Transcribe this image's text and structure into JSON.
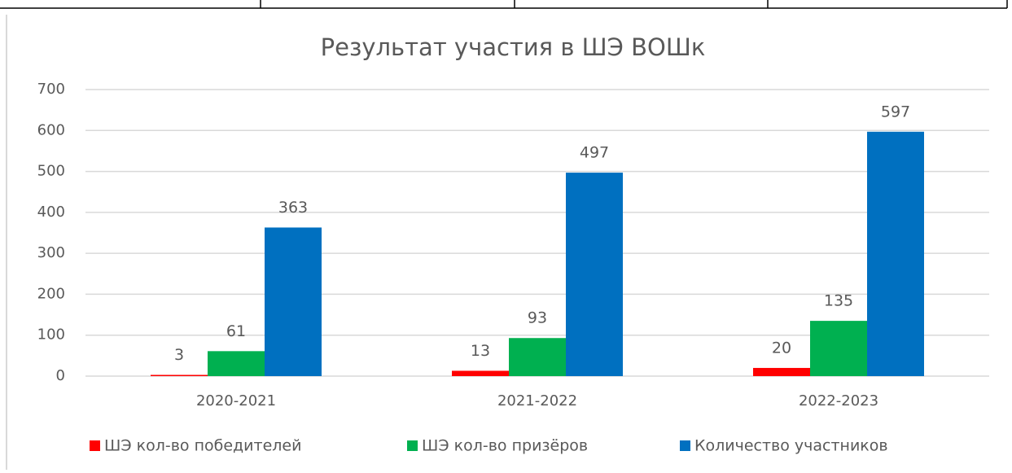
{
  "chart_data": {
    "type": "bar",
    "title": "Результат участия в ШЭ ВОШк",
    "categories": [
      "2020-2021",
      "2021-2022",
      "2022-2023"
    ],
    "series": [
      {
        "name": "ШЭ кол-во победителей",
        "color": "#ff0000",
        "values": [
          3,
          13,
          20
        ]
      },
      {
        "name": "ШЭ кол-во призёров",
        "color": "#00b050",
        "values": [
          61,
          93,
          135
        ]
      },
      {
        "name": "Количество участников",
        "color": "#0070c0",
        "values": [
          363,
          497,
          597
        ]
      }
    ],
    "ylim": [
      0,
      700
    ],
    "yticks": [
      0,
      100,
      200,
      300,
      400,
      500,
      600,
      700
    ],
    "grid": true,
    "legend": "bottom"
  }
}
